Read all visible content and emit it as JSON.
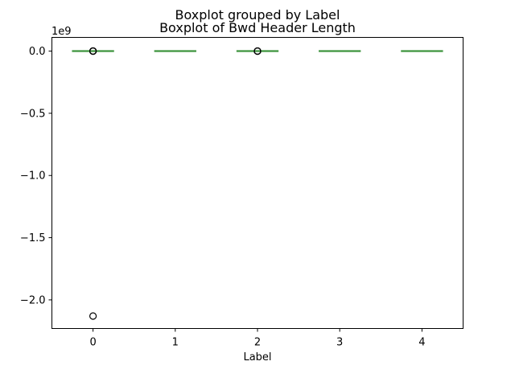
{
  "chart_data": {
    "type": "boxplot",
    "suptitle": "Boxplot grouped by Label",
    "title": "Boxplot of Bwd Header Length",
    "xlabel": "Label",
    "ylabel": "",
    "y_offset_label": "1e9",
    "ylim": [
      -2.23,
      0.11
    ],
    "y_ticks": [
      0.0,
      -0.5,
      -1.0,
      -1.5,
      -2.0
    ],
    "y_tick_labels": [
      "0.0",
      "−0.5",
      "−1.0",
      "−1.5",
      "−2.0"
    ],
    "categories": [
      "0",
      "1",
      "2",
      "3",
      "4"
    ],
    "box_color": "#3a923a",
    "boxes": [
      {
        "label": "0",
        "whisker_low": 0.0,
        "q1": 0.0,
        "median": 0.0,
        "q3": 0.0,
        "whisker_high": 0.0,
        "fliers": [
          0.0,
          0.0003,
          -0.0003,
          0.0005,
          -2.13
        ]
      },
      {
        "label": "1",
        "whisker_low": 0.0,
        "q1": 0.0,
        "median": 0.0,
        "q3": 0.0,
        "whisker_high": 0.0,
        "fliers": []
      },
      {
        "label": "2",
        "whisker_low": 0.0,
        "q1": 0.0,
        "median": 0.0,
        "q3": 0.0,
        "whisker_high": 0.0,
        "fliers": [
          0.0,
          0.0003,
          -0.0003
        ]
      },
      {
        "label": "3",
        "whisker_low": 0.0,
        "q1": 0.0,
        "median": 0.0,
        "q3": 0.0,
        "whisker_high": 0.0,
        "fliers": []
      },
      {
        "label": "4",
        "whisker_low": 0.0,
        "q1": 0.0,
        "median": 0.0,
        "q3": 0.0,
        "whisker_high": 0.0,
        "fliers": []
      }
    ],
    "grid": false
  }
}
